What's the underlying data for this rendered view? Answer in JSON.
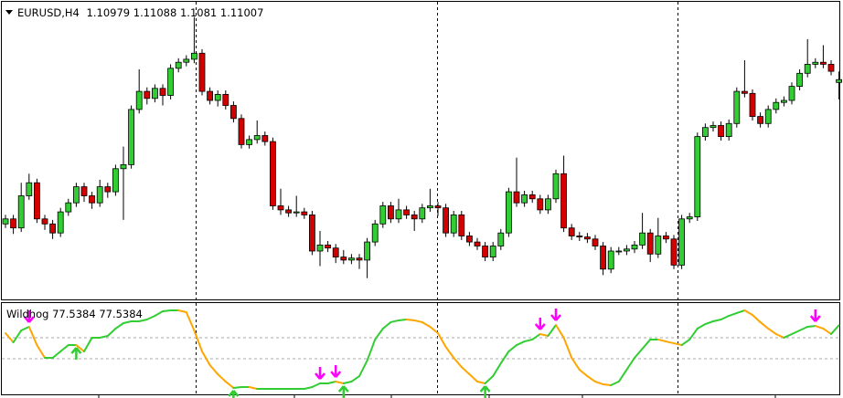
{
  "chart_data": [
    {
      "type": "candlestick",
      "title": "EURUSD,H4",
      "up_color": "#32cd32",
      "down_color": "#d40000",
      "ylim": [
        1.088,
        1.118
      ],
      "open": [
        1.0957,
        1.0962,
        1.0953,
        1.0985,
        1.0998,
        1.0962,
        1.0957,
        1.0948,
        1.0969,
        1.0978,
        1.0994,
        1.0985,
        1.0978,
        1.0994,
        1.0989,
        1.1012,
        1.1016,
        1.1071,
        1.1089,
        1.1082,
        1.1092,
        1.1085,
        1.1112,
        1.1118,
        1.1121,
        1.1127,
        1.1089,
        1.108,
        1.1086,
        1.1075,
        1.1062,
        1.1036,
        1.1041,
        1.1045,
        1.1039,
        1.0975,
        1.0971,
        1.0968,
        1.0969,
        1.0966,
        1.093,
        1.0936,
        1.0933,
        1.0924,
        1.0921,
        1.0923,
        1.0921,
        1.0939,
        1.0957,
        1.0975,
        1.0962,
        1.0971,
        1.0966,
        1.0962,
        1.0973,
        1.0975,
        1.0973,
        1.0948,
        1.0966,
        1.0945,
        1.0939,
        1.0935,
        1.0924,
        1.0935,
        1.0948,
        1.0989,
        1.0978,
        1.0986,
        1.0982,
        1.0971,
        1.0982,
        1.1007,
        1.0953,
        1.0945,
        1.0944,
        1.0942,
        1.0935,
        1.0912,
        1.093,
        1.093,
        1.0932,
        1.0936,
        1.0948,
        1.0927,
        1.0945,
        1.0942,
        1.0916,
        1.0962,
        1.0964,
        1.1044,
        1.1053,
        1.1055,
        1.1044,
        1.1057,
        1.1089,
        1.1087,
        1.1064,
        1.1057,
        1.1071,
        1.1078,
        1.108,
        1.1094,
        1.1107,
        1.1116,
        1.1118,
        1.1116,
        1.10979
      ],
      "high": [
        1.0966,
        1.0966,
        1.0998,
        1.1007,
        1.1002,
        1.0966,
        1.0961,
        1.0973,
        1.0982,
        1.0998,
        1.0998,
        1.0989,
        1.1001,
        1.0998,
        1.1016,
        1.1034,
        1.1075,
        1.1111,
        1.1093,
        1.1096,
        1.1096,
        1.1116,
        1.1122,
        1.1125,
        1.1163,
        1.1131,
        1.1093,
        1.109,
        1.109,
        1.1079,
        1.1066,
        1.1045,
        1.106,
        1.1049,
        1.1043,
        1.0992,
        1.0975,
        1.0985,
        1.0973,
        1.097,
        1.095,
        1.094,
        1.0937,
        1.0931,
        1.0927,
        1.0927,
        1.0943,
        1.0961,
        1.0979,
        1.0979,
        1.0982,
        1.0975,
        1.097,
        1.0977,
        1.0992,
        1.0979,
        1.0977,
        1.097,
        1.097,
        1.0949,
        1.0943,
        1.0939,
        1.0939,
        1.0952,
        1.0993,
        1.1023,
        1.099,
        1.099,
        1.0986,
        1.0986,
        1.1011,
        1.1025,
        1.0957,
        1.0949,
        1.0948,
        1.0946,
        1.0939,
        1.0934,
        1.0934,
        1.0936,
        1.094,
        1.0968,
        1.0952,
        1.0963,
        1.0949,
        1.0946,
        1.0966,
        1.0968,
        1.1048,
        1.1057,
        1.1059,
        1.1059,
        1.1061,
        1.1093,
        1.112,
        1.1091,
        1.1068,
        1.1075,
        1.1082,
        1.1084,
        1.1098,
        1.1111,
        1.1141,
        1.1122,
        1.1135,
        1.112,
        1.11088
      ],
      "low": [
        1.0953,
        1.0947,
        1.0949,
        1.0981,
        1.0958,
        1.0951,
        1.0942,
        1.0944,
        1.0965,
        1.0974,
        1.0979,
        1.0972,
        1.0974,
        1.0983,
        1.0985,
        1.0961,
        1.1012,
        1.1067,
        1.1076,
        1.1078,
        1.1075,
        1.1081,
        1.1108,
        1.1114,
        1.1117,
        1.1085,
        1.1076,
        1.1074,
        1.1071,
        1.1058,
        1.1032,
        1.1032,
        1.1037,
        1.1035,
        1.0971,
        1.0966,
        1.0964,
        1.0964,
        1.0962,
        1.0926,
        1.0915,
        1.0929,
        1.0918,
        1.0917,
        1.0917,
        1.0912,
        1.0903,
        1.0935,
        1.0953,
        1.0958,
        1.0958,
        1.0962,
        1.095,
        1.0958,
        1.0969,
        1.0965,
        1.0944,
        1.0944,
        1.0941,
        1.0935,
        1.0931,
        1.092,
        1.092,
        1.0931,
        1.0944,
        1.0974,
        1.0974,
        1.0978,
        1.0967,
        1.0967,
        1.0978,
        1.0949,
        1.0941,
        1.094,
        1.0938,
        1.0931,
        1.0906,
        1.0908,
        1.0926,
        1.0926,
        1.0928,
        1.0932,
        1.0919,
        1.0923,
        1.0938,
        1.0912,
        1.0912,
        1.0958,
        1.096,
        1.104,
        1.1049,
        1.104,
        1.104,
        1.1053,
        1.1083,
        1.106,
        1.1053,
        1.1053,
        1.1067,
        1.1074,
        1.1076,
        1.109,
        1.1103,
        1.1112,
        1.1112,
        1.1105,
        1.1081
      ],
      "close": [
        1.0962,
        1.0953,
        1.0985,
        1.0998,
        1.0962,
        1.0957,
        1.0948,
        1.0969,
        1.0978,
        1.0994,
        1.0985,
        1.0978,
        1.0994,
        1.0989,
        1.1012,
        1.1016,
        1.1071,
        1.1089,
        1.1082,
        1.1092,
        1.1085,
        1.1112,
        1.1118,
        1.1121,
        1.1127,
        1.1089,
        1.108,
        1.1086,
        1.1075,
        1.1062,
        1.1036,
        1.1041,
        1.1045,
        1.1039,
        1.0975,
        1.0971,
        1.0968,
        1.0969,
        1.0966,
        1.093,
        1.0936,
        1.0933,
        1.0924,
        1.0921,
        1.0923,
        1.0921,
        1.0939,
        1.0957,
        1.0975,
        1.0962,
        1.0971,
        1.0966,
        1.0962,
        1.0973,
        1.0975,
        1.0973,
        1.0948,
        1.0966,
        1.0945,
        1.0939,
        1.0935,
        1.0924,
        1.0935,
        1.0948,
        1.0989,
        1.0978,
        1.0986,
        1.0982,
        1.0971,
        1.0982,
        1.1007,
        1.0953,
        1.0945,
        1.0944,
        1.0942,
        1.0935,
        1.0912,
        1.093,
        1.093,
        1.0932,
        1.0936,
        1.0948,
        1.0927,
        1.0945,
        1.0942,
        1.0916,
        1.0962,
        1.0964,
        1.1044,
        1.1053,
        1.1055,
        1.1044,
        1.1057,
        1.1089,
        1.1087,
        1.1064,
        1.1057,
        1.1071,
        1.1078,
        1.108,
        1.1094,
        1.1107,
        1.1116,
        1.1118,
        1.1116,
        1.1109,
        1.11007
      ]
    },
    {
      "type": "line",
      "title": "Wildhog",
      "up_color": "#32cd32",
      "down_color": "#ffa500",
      "ylim": [
        0,
        100
      ],
      "levels": [
        63.2,
        38.9
      ],
      "values": [
        68.4,
        57.9,
        71.6,
        75.8,
        54.7,
        40.0,
        40.0,
        47.4,
        54.7,
        54.7,
        47.4,
        63.2,
        63.2,
        65.3,
        73.7,
        80.0,
        82.1,
        82.1,
        84.2,
        88.4,
        93.7,
        94.7,
        94.7,
        92.6,
        71.6,
        47.4,
        31.6,
        21.1,
        12.6,
        5.3,
        6.3,
        6.3,
        4.2,
        4.2,
        4.2,
        4.2,
        4.2,
        4.2,
        4.2,
        6.3,
        10.5,
        10.5,
        12.6,
        10.5,
        12.6,
        18.9,
        36.8,
        61.1,
        73.7,
        81.1,
        83.2,
        84.2,
        83.2,
        81.1,
        75.8,
        68.4,
        52.6,
        40.0,
        29.5,
        21.1,
        12.6,
        10.5,
        18.9,
        33.7,
        47.4,
        54.7,
        58.9,
        61.1,
        67.4,
        65.3,
        77.9,
        63.2,
        40.0,
        26.3,
        18.9,
        12.6,
        9.5,
        8.4,
        12.6,
        26.3,
        40.0,
        50.5,
        61.1,
        61.1,
        58.9,
        56.8,
        54.7,
        61.1,
        73.7,
        78.9,
        82.1,
        84.2,
        88.4,
        91.6,
        94.7,
        89.5,
        81.1,
        73.7,
        67.4,
        63.2,
        67.4,
        71.6,
        75.8,
        76.8,
        73.7,
        67.4,
        77.5384
      ],
      "buy_signals": [
        9,
        29,
        43,
        61
      ],
      "sell_signals": [
        3,
        40,
        42,
        68,
        70,
        103
      ],
      "buy_color": "#32cd32",
      "sell_color": "#ff00ff"
    }
  ]
}
